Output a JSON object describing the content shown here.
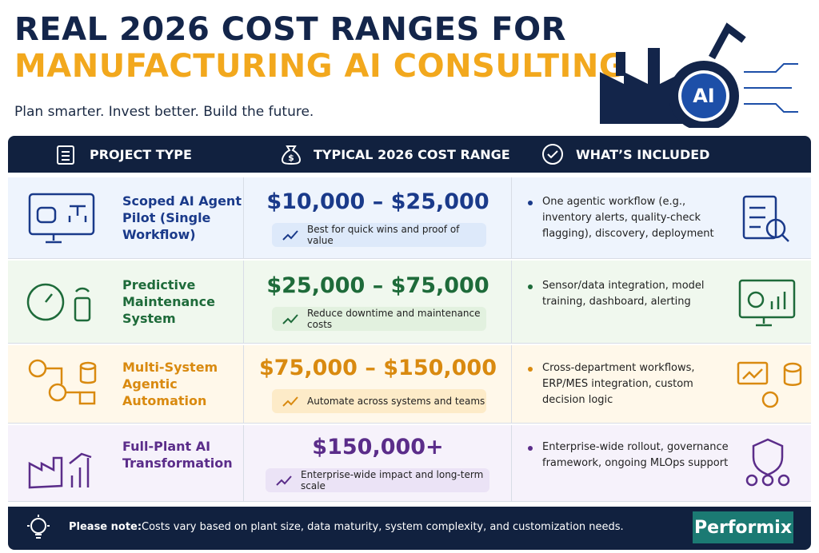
{
  "header": {
    "title_line1": "REAL 2026 COST RANGES FOR",
    "title_line2": "MANUFACTURING AI CONSULTING",
    "subtitle": "Plan smarter. Invest better. Build the future.",
    "badge": "AI"
  },
  "table": {
    "columns": [
      "PROJECT TYPE",
      "TYPICAL 2026 COST RANGE",
      "WHAT’S INCLUDED"
    ],
    "rows": [
      {
        "project": "Scoped AI Agent Pilot (Single Workflow)",
        "cost": "$10,000 – $25,000",
        "note": "Best for quick wins and proof of value",
        "included": "One agentic workflow (e.g., inventory alerts, quality-check flagging), discovery, deployment"
      },
      {
        "project": "Predictive Maintenance System",
        "cost": "$25,000 – $75,000",
        "note": "Reduce downtime and maintenance costs",
        "included": "Sensor/data integration, model training, dashboard, alerting"
      },
      {
        "project": "Multi-System Agentic Automation",
        "cost": "$75,000 – $150,000",
        "note": "Automate across systems and teams",
        "included": "Cross-department workflows, ERP/MES integration, custom decision logic"
      },
      {
        "project": "Full-Plant AI Transformation",
        "cost": "$150,000+",
        "note": "Enterprise-wide impact and long-term scale",
        "included": "Enterprise-wide rollout, governance framework, ongoing MLOps support"
      }
    ]
  },
  "footer": {
    "label": "Please note:",
    "text": "Costs vary based on plant size, data maturity, system complexity, and customization needs.",
    "brand": "Performix"
  }
}
